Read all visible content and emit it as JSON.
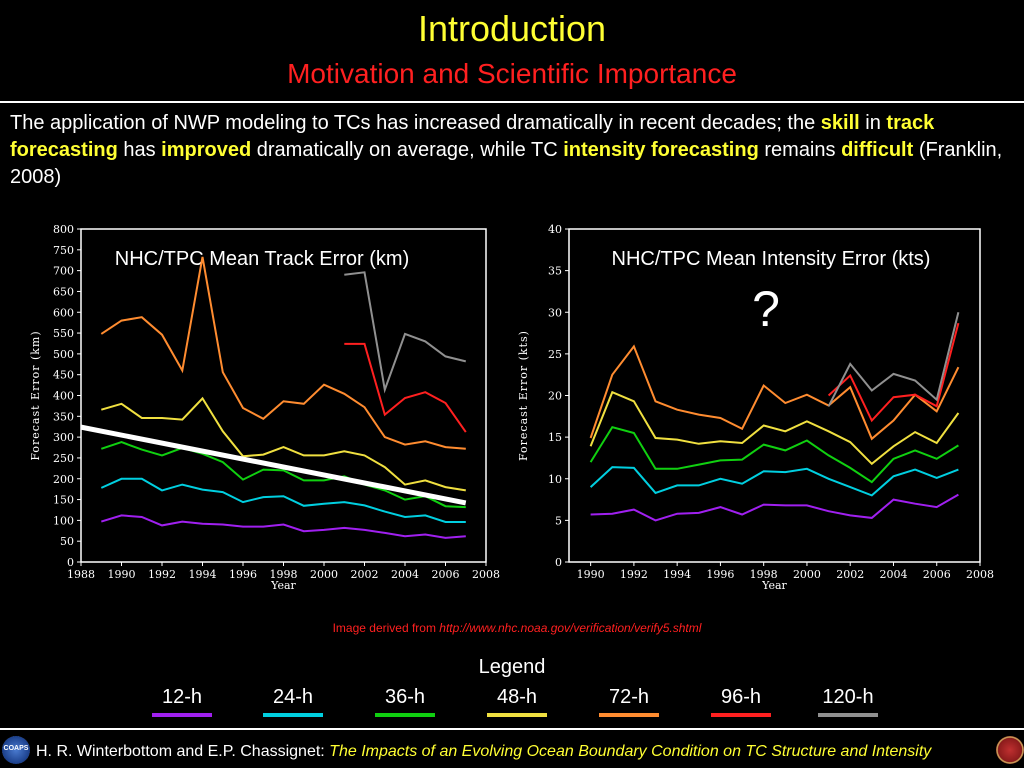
{
  "header": {
    "title": "Introduction",
    "subtitle": "Motivation and Scientific Importance"
  },
  "intro": {
    "t1": "The application of NWP modeling to TCs has increased dramatically in recent decades; the ",
    "h1": "skill",
    "t2": "  in ",
    "h2": "track forecasting",
    "t3": " has ",
    "h3": "improved",
    "t4": " dramatically on average, while TC ",
    "h4": "intensity forecasting",
    "t5": " remains ",
    "h5": "difficult",
    "t6": " (Franklin, 2008)"
  },
  "credit": {
    "prefix": "Image derived from ",
    "url": "http://www.nhc.noaa.gov/verification/verify5.shtml"
  },
  "legend": {
    "title": "Legend",
    "items": [
      {
        "label": "12-h",
        "color": "#a020f0"
      },
      {
        "label": "24-h",
        "color": "#00cfe0"
      },
      {
        "label": "36-h",
        "color": "#10d010"
      },
      {
        "label": "48-h",
        "color": "#f0e040"
      },
      {
        "label": "72-h",
        "color": "#ff8c30"
      },
      {
        "label": "96-h",
        "color": "#ff2020"
      },
      {
        "label": "120-h",
        "color": "#909090"
      }
    ]
  },
  "footer": {
    "authors": "H. R. Winterbottom and E.P. Chassignet: ",
    "paper_title": "The Impacts of an Evolving Ocean Boundary Condition on TC Structure and Intensity",
    "logo_left": "COAPS"
  },
  "chart_data": [
    {
      "type": "line",
      "title": "NHC/TPC Mean Track Error (km)",
      "xlabel": "Year",
      "ylabel": "Forecast Error (km)",
      "xlim": [
        1988,
        2008
      ],
      "ylim": [
        0,
        800
      ],
      "xticks": [
        1988,
        1990,
        1992,
        1994,
        1996,
        1998,
        2000,
        2002,
        2004,
        2006,
        2008
      ],
      "yticks": [
        0,
        50,
        100,
        150,
        200,
        250,
        300,
        350,
        400,
        450,
        500,
        550,
        600,
        650,
        700,
        750,
        800
      ],
      "series": [
        {
          "name": "12-h",
          "color": "#a020f0",
          "x": [
            1989,
            1990,
            1991,
            1992,
            1993,
            1994,
            1995,
            1996,
            1997,
            1998,
            1999,
            2000,
            2001,
            2002,
            2003,
            2004,
            2005,
            2006,
            2007
          ],
          "y": [
            97,
            112,
            108,
            88,
            97,
            92,
            90,
            85,
            85,
            90,
            74,
            77,
            82,
            77,
            70,
            62,
            66,
            58,
            62
          ]
        },
        {
          "name": "24-h",
          "color": "#00cfe0",
          "x": [
            1989,
            1990,
            1991,
            1992,
            1993,
            1994,
            1995,
            1996,
            1997,
            1998,
            1999,
            2000,
            2001,
            2002,
            2003,
            2004,
            2005,
            2006,
            2007
          ],
          "y": [
            178,
            200,
            200,
            172,
            186,
            174,
            168,
            144,
            156,
            158,
            135,
            140,
            144,
            136,
            121,
            108,
            112,
            96,
            96
          ]
        },
        {
          "name": "36-h",
          "color": "#10d010",
          "x": [
            1989,
            1990,
            1991,
            1992,
            1993,
            1994,
            1995,
            1996,
            1997,
            1998,
            1999,
            2000,
            2001,
            2002,
            2003,
            2004,
            2005,
            2006,
            2007
          ],
          "y": [
            272,
            288,
            270,
            256,
            274,
            260,
            240,
            198,
            222,
            220,
            196,
            196,
            206,
            186,
            172,
            150,
            158,
            134,
            132
          ]
        },
        {
          "name": "48-h",
          "color": "#f0e040",
          "x": [
            1989,
            1990,
            1991,
            1992,
            1993,
            1994,
            1995,
            1996,
            1997,
            1998,
            1999,
            2000,
            2001,
            2002,
            2003,
            2004,
            2005,
            2006,
            2007
          ],
          "y": [
            366,
            380,
            346,
            346,
            342,
            393,
            314,
            254,
            258,
            276,
            256,
            256,
            266,
            256,
            228,
            186,
            196,
            180,
            172
          ]
        },
        {
          "name": "72-h",
          "color": "#ff8c30",
          "x": [
            1989,
            1990,
            1991,
            1992,
            1993,
            1994,
            1995,
            1996,
            1997,
            1998,
            1999,
            2000,
            2001,
            2002,
            2003,
            2004,
            2005,
            2006,
            2007
          ],
          "y": [
            548,
            580,
            588,
            546,
            460,
            733,
            456,
            370,
            344,
            386,
            380,
            426,
            404,
            372,
            300,
            282,
            290,
            276,
            272
          ]
        },
        {
          "name": "96-h",
          "color": "#ff2020",
          "x": [
            2001,
            2002,
            2003,
            2004,
            2005,
            2006,
            2007
          ],
          "y": [
            524,
            524,
            354,
            394,
            408,
            382,
            312
          ]
        },
        {
          "name": "120-h",
          "color": "#909090",
          "x": [
            2001,
            2002,
            2003,
            2004,
            2005,
            2006,
            2007
          ],
          "y": [
            690,
            696,
            414,
            548,
            530,
            494,
            482
          ]
        }
      ],
      "trend": {
        "color": "#ffffff",
        "x": [
          1988,
          2007
        ],
        "y": [
          324,
          142
        ]
      }
    },
    {
      "type": "line",
      "title": "NHC/TPC Mean Intensity Error (kts)",
      "annotation": "?",
      "xlabel": "Year",
      "ylabel": "Forecast Error (kts)",
      "xlim": [
        1989,
        2008
      ],
      "ylim": [
        0,
        40
      ],
      "xticks": [
        1990,
        1992,
        1994,
        1996,
        1998,
        2000,
        2002,
        2004,
        2006,
        2008
      ],
      "yticks": [
        0,
        5,
        10,
        15,
        20,
        25,
        30,
        35,
        40
      ],
      "series": [
        {
          "name": "12-h",
          "color": "#a020f0",
          "x": [
            1990,
            1991,
            1992,
            1993,
            1994,
            1995,
            1996,
            1997,
            1998,
            1999,
            2000,
            2001,
            2002,
            2003,
            2004,
            2005,
            2006,
            2007
          ],
          "y": [
            5.7,
            5.8,
            6.3,
            5.0,
            5.8,
            5.9,
            6.6,
            5.7,
            6.9,
            6.8,
            6.8,
            6.1,
            5.6,
            5.3,
            7.5,
            7.0,
            6.6,
            8.1
          ]
        },
        {
          "name": "24-h",
          "color": "#00cfe0",
          "x": [
            1990,
            1991,
            1992,
            1993,
            1994,
            1995,
            1996,
            1997,
            1998,
            1999,
            2000,
            2001,
            2002,
            2003,
            2004,
            2005,
            2006,
            2007
          ],
          "y": [
            9.0,
            11.4,
            11.3,
            8.3,
            9.2,
            9.2,
            10.0,
            9.4,
            10.9,
            10.8,
            11.2,
            10.0,
            9.0,
            8.0,
            10.3,
            11.1,
            10.1,
            11.1
          ]
        },
        {
          "name": "36-h",
          "color": "#10d010",
          "x": [
            1990,
            1991,
            1992,
            1993,
            1994,
            1995,
            1996,
            1997,
            1998,
            1999,
            2000,
            2001,
            2002,
            2003,
            2004,
            2005,
            2006,
            2007
          ],
          "y": [
            12.0,
            16.2,
            15.5,
            11.2,
            11.2,
            11.7,
            12.2,
            12.3,
            14.1,
            13.4,
            14.6,
            12.8,
            11.3,
            9.6,
            12.4,
            13.4,
            12.4,
            14.0
          ]
        },
        {
          "name": "48-h",
          "color": "#f0e040",
          "x": [
            1990,
            1991,
            1992,
            1993,
            1994,
            1995,
            1996,
            1997,
            1998,
            1999,
            2000,
            2001,
            2002,
            2003,
            2004,
            2005,
            2006,
            2007
          ],
          "y": [
            13.9,
            20.4,
            19.3,
            14.9,
            14.7,
            14.2,
            14.5,
            14.3,
            16.4,
            15.7,
            16.9,
            15.7,
            14.4,
            11.8,
            13.9,
            15.6,
            14.3,
            17.9
          ]
        },
        {
          "name": "72-h",
          "color": "#ff8c30",
          "x": [
            1990,
            1991,
            1992,
            1993,
            1994,
            1995,
            1996,
            1997,
            1998,
            1999,
            2000,
            2001,
            2002,
            2003,
            2004,
            2005,
            2006,
            2007
          ],
          "y": [
            14.9,
            22.5,
            25.9,
            19.3,
            18.3,
            17.7,
            17.3,
            16.0,
            21.2,
            19.1,
            20.1,
            18.8,
            21.0,
            14.8,
            17.0,
            20.1,
            18.1,
            23.4
          ]
        },
        {
          "name": "96-h",
          "color": "#ff2020",
          "x": [
            2001,
            2002,
            2003,
            2004,
            2005,
            2006,
            2007
          ],
          "y": [
            20.0,
            22.4,
            17.0,
            19.8,
            20.1,
            18.7,
            28.7
          ]
        },
        {
          "name": "120-h",
          "color": "#909090",
          "x": [
            2001,
            2002,
            2003,
            2004,
            2005,
            2006,
            2007
          ],
          "y": [
            18.7,
            23.8,
            20.6,
            22.6,
            21.8,
            19.5,
            30.0
          ]
        }
      ]
    }
  ]
}
